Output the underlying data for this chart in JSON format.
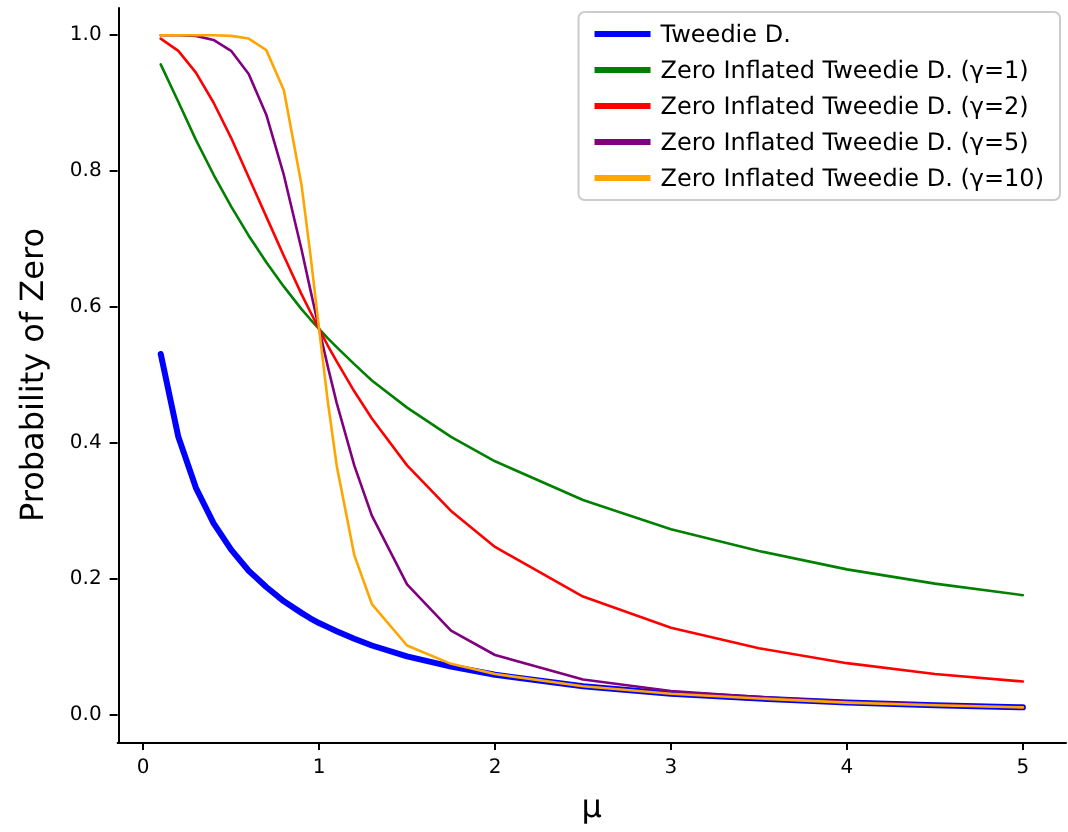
{
  "chart_data": {
    "type": "line",
    "xlabel": "μ",
    "ylabel": "Probability of Zero",
    "x": [
      0.1,
      0.2,
      0.3,
      0.4,
      0.5,
      0.6,
      0.7,
      0.8,
      0.9,
      0.95,
      1.0,
      1.05,
      1.1,
      1.2,
      1.3,
      1.5,
      1.75,
      2,
      2.5,
      3,
      3.5,
      4,
      4.5,
      5
    ],
    "series": [
      {
        "name": "Tweedie D.",
        "color": "#0000ff",
        "values": [
          0.531,
          0.409,
          0.334,
          0.282,
          0.243,
          0.212,
          0.188,
          0.167,
          0.15,
          0.142,
          0.135,
          0.129,
          0.123,
          0.112,
          0.102,
          0.086,
          0.071,
          0.059,
          0.042,
          0.031,
          0.024,
          0.018,
          0.014,
          0.011
        ]
      },
      {
        "name": "Zero Inflated Tweedie D. (γ=1)",
        "color": "#008000",
        "values": [
          0.957,
          0.902,
          0.846,
          0.795,
          0.748,
          0.705,
          0.666,
          0.63,
          0.597,
          0.582,
          0.568,
          0.554,
          0.541,
          0.516,
          0.492,
          0.452,
          0.409,
          0.373,
          0.316,
          0.273,
          0.241,
          0.214,
          0.193,
          0.176
        ]
      },
      {
        "name": "Zero Inflated Tweedie D. (γ=2)",
        "color": "#ff0000",
        "values": [
          0.995,
          0.977,
          0.945,
          0.901,
          0.849,
          0.791,
          0.733,
          0.675,
          0.619,
          0.593,
          0.568,
          0.543,
          0.52,
          0.476,
          0.436,
          0.367,
          0.3,
          0.247,
          0.174,
          0.128,
          0.098,
          0.076,
          0.06,
          0.049
        ]
      },
      {
        "name": "Zero Inflated Tweedie D. (γ=5)",
        "color": "#800080",
        "values": [
          1.0,
          1.0,
          0.999,
          0.993,
          0.977,
          0.943,
          0.883,
          0.794,
          0.685,
          0.626,
          0.568,
          0.512,
          0.459,
          0.367,
          0.293,
          0.192,
          0.124,
          0.088,
          0.052,
          0.035,
          0.026,
          0.019,
          0.015,
          0.011
        ]
      },
      {
        "name": "Zero Inflated Tweedie D. (γ=10)",
        "color": "#ffa500",
        "values": [
          1.0,
          1.0,
          1.0,
          1.0,
          0.999,
          0.995,
          0.978,
          0.919,
          0.78,
          0.679,
          0.568,
          0.46,
          0.367,
          0.235,
          0.163,
          0.102,
          0.075,
          0.06,
          0.042,
          0.031,
          0.024,
          0.018,
          0.014,
          0.011
        ]
      }
    ],
    "xlim": [
      -0.145,
      5.245
    ],
    "xticks": [
      0,
      1,
      2,
      3,
      4,
      5
    ],
    "ylim": [
      -0.04,
      1.04
    ],
    "yticks": [
      {
        "value": 0,
        "label": "0.0"
      },
      {
        "value": 0.2,
        "label": "0.2"
      },
      {
        "value": 0.4,
        "label": "0.4"
      },
      {
        "value": 0.6,
        "label": "0.6"
      },
      {
        "value": 0.8,
        "label": "0.8"
      },
      {
        "value": 1,
        "label": "1.0"
      }
    ],
    "grid": false,
    "legend": "top right",
    "marker": "none",
    "line_style": "solid"
  }
}
